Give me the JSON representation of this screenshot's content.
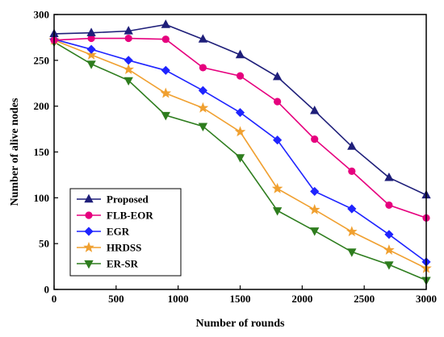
{
  "chart_data": {
    "type": "line",
    "xlabel": "Number of rounds",
    "ylabel": "Number of alive nodes",
    "xlim": [
      0,
      3000
    ],
    "ylim": [
      0,
      300
    ],
    "xticks": [
      0,
      500,
      1000,
      1500,
      2000,
      2500,
      3000
    ],
    "yticks": [
      0,
      50,
      100,
      150,
      200,
      250,
      300
    ],
    "grid": false,
    "legend_position": "bottom-left",
    "series": [
      {
        "name": "Proposed",
        "color": "#1f1f7a",
        "marker": "triangle-up",
        "x": [
          0,
          300,
          600,
          900,
          1200,
          1500,
          1800,
          2100,
          2400,
          2700,
          3000
        ],
        "y": [
          279,
          280,
          282,
          289,
          273,
          256,
          232,
          195,
          156,
          122,
          103
        ]
      },
      {
        "name": "FLB-EOR",
        "color": "#e6007e",
        "marker": "circle",
        "x": [
          0,
          300,
          600,
          900,
          1200,
          1500,
          1800,
          2100,
          2400,
          2700,
          3000
        ],
        "y": [
          272,
          274,
          274,
          273,
          242,
          233,
          205,
          164,
          129,
          92,
          78
        ]
      },
      {
        "name": "EGR",
        "color": "#1f24ff",
        "marker": "diamond",
        "x": [
          0,
          300,
          600,
          900,
          1200,
          1500,
          1800,
          2100,
          2400,
          2700,
          3000
        ],
        "y": [
          273,
          262,
          250,
          239,
          217,
          193,
          163,
          107,
          88,
          60,
          30
        ]
      },
      {
        "name": "HRDSS",
        "color": "#f0a030",
        "marker": "star",
        "x": [
          0,
          300,
          600,
          900,
          1200,
          1500,
          1800,
          2100,
          2400,
          2700,
          3000
        ],
        "y": [
          272,
          256,
          240,
          214,
          198,
          172,
          110,
          87,
          63,
          43,
          23
        ]
      },
      {
        "name": "ER-SR",
        "color": "#2e7d1e",
        "marker": "triangle-down",
        "x": [
          0,
          300,
          600,
          900,
          1200,
          1500,
          1800,
          2100,
          2400,
          2700,
          3000
        ],
        "y": [
          270,
          246,
          228,
          190,
          178,
          144,
          86,
          64,
          41,
          27,
          10
        ]
      }
    ]
  }
}
